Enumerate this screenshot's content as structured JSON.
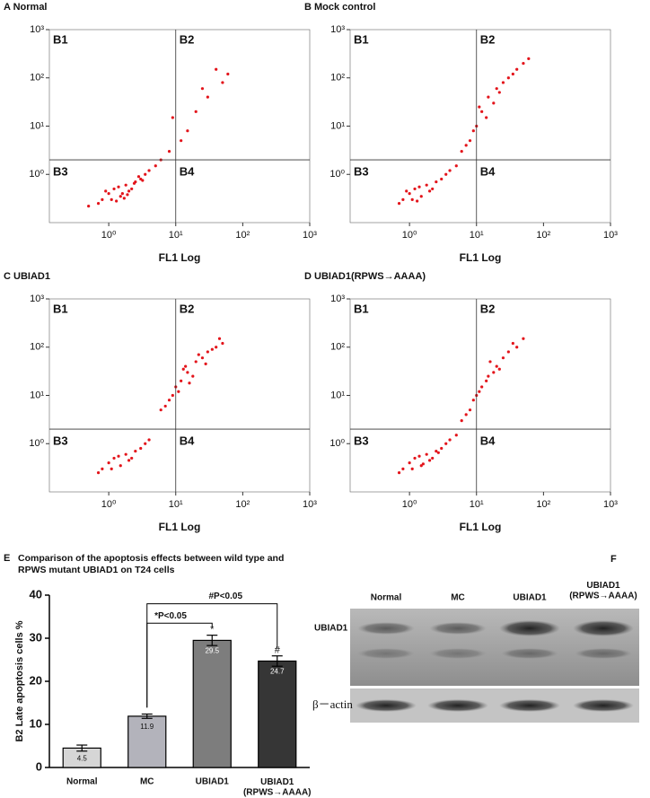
{
  "chart_data": [
    {
      "type": "scatter",
      "title": "A Normal",
      "x_label": "FL1 Log",
      "quadrant_labels": [
        "B1",
        "B2",
        "B3",
        "B4"
      ],
      "color": "#e3141b",
      "log_x": true,
      "log_y": true,
      "x": [
        0.8,
        1.0,
        1.2,
        1.5,
        1.8,
        2.0,
        2.5,
        3.0,
        0.7,
        1.1,
        1.4,
        2.2,
        3.5,
        4.0,
        5.0,
        1.3,
        0.9,
        1.6,
        2.8,
        6.0,
        8.0,
        12,
        15,
        20,
        30,
        25,
        50,
        60,
        9,
        0.5,
        1.7,
        2.4,
        1.9,
        3.2,
        40
      ],
      "values": [
        0.3,
        0.4,
        0.5,
        0.35,
        0.6,
        0.45,
        0.7,
        0.8,
        0.25,
        0.3,
        0.55,
        0.5,
        1.0,
        1.2,
        1.5,
        0.28,
        0.45,
        0.4,
        0.9,
        2.0,
        3.0,
        5.0,
        8.0,
        20,
        40,
        60,
        80,
        120,
        15,
        0.22,
        0.32,
        0.65,
        0.38,
        0.75,
        150
      ],
      "xlim": [
        0.13,
        1000
      ],
      "ylim": [
        0.1,
        1000
      ],
      "xticks": [
        {
          "value": 1,
          "label": "10⁰"
        },
        {
          "value": 10,
          "label": "10¹"
        },
        {
          "value": 100,
          "label": "10²"
        },
        {
          "value": 1000,
          "label": "10³"
        }
      ],
      "yticks": [
        {
          "value": 1,
          "label": "10⁰"
        },
        {
          "value": 10,
          "label": "10¹"
        },
        {
          "value": 100,
          "label": "10²"
        },
        {
          "value": 1000,
          "label": "10³"
        }
      ],
      "gate_x": 10,
      "gate_y": 2
    },
    {
      "type": "scatter",
      "title": "B Mock control",
      "x_label": "FL1 Log",
      "quadrant_labels": [
        "B1",
        "B2",
        "B3",
        "B4"
      ],
      "color": "#e3141b",
      "log_x": true,
      "log_y": true,
      "x": [
        0.8,
        1.0,
        1.2,
        1.5,
        1.8,
        2.0,
        2.5,
        3.0,
        0.7,
        1.1,
        1.4,
        2.2,
        3.5,
        4.0,
        5.0,
        1.3,
        0.9,
        6.0,
        8.0,
        10,
        12,
        15,
        20,
        25,
        30,
        18,
        40,
        50,
        9,
        14,
        22,
        7,
        11,
        35,
        60
      ],
      "values": [
        0.3,
        0.4,
        0.5,
        0.35,
        0.6,
        0.45,
        0.7,
        0.8,
        0.25,
        0.3,
        0.55,
        0.5,
        1.0,
        1.2,
        1.5,
        0.28,
        0.45,
        3.0,
        5.0,
        10,
        20,
        40,
        60,
        80,
        100,
        30,
        150,
        200,
        8.0,
        15,
        50,
        4.0,
        25,
        120,
        250
      ],
      "xlim": [
        0.13,
        1000
      ],
      "ylim": [
        0.1,
        1000
      ],
      "xticks": [
        {
          "value": 1,
          "label": "10⁰"
        },
        {
          "value": 10,
          "label": "10¹"
        },
        {
          "value": 100,
          "label": "10²"
        },
        {
          "value": 1000,
          "label": "10³"
        }
      ],
      "yticks": [
        {
          "value": 1,
          "label": "10⁰"
        },
        {
          "value": 10,
          "label": "10¹"
        },
        {
          "value": 100,
          "label": "10²"
        },
        {
          "value": 1000,
          "label": "10³"
        }
      ],
      "gate_x": 10,
      "gate_y": 2
    },
    {
      "type": "scatter",
      "title": "C UBIAD1",
      "x_label": "FL1 Log",
      "quadrant_labels": [
        "B1",
        "B2",
        "B3",
        "B4"
      ],
      "color": "#e3141b",
      "log_x": true,
      "log_y": true,
      "x": [
        0.8,
        1.0,
        1.2,
        1.5,
        1.8,
        2.0,
        2.5,
        3.0,
        0.7,
        1.1,
        1.4,
        2.2,
        3.5,
        4.0,
        6.0,
        8.0,
        10,
        12,
        15,
        20,
        25,
        30,
        40,
        50,
        9,
        14,
        18,
        22,
        11,
        16,
        35,
        28,
        7,
        13,
        45
      ],
      "values": [
        0.3,
        0.4,
        0.5,
        0.35,
        0.6,
        0.45,
        0.7,
        0.8,
        0.25,
        0.3,
        0.55,
        0.5,
        1.0,
        1.2,
        5.0,
        8.0,
        15,
        20,
        30,
        50,
        60,
        80,
        100,
        120,
        10,
        40,
        25,
        70,
        12,
        18,
        90,
        45,
        6.0,
        35,
        150
      ],
      "xlim": [
        0.13,
        1000
      ],
      "ylim": [
        0.1,
        1000
      ],
      "xticks": [
        {
          "value": 1,
          "label": "10⁰"
        },
        {
          "value": 10,
          "label": "10¹"
        },
        {
          "value": 100,
          "label": "10²"
        },
        {
          "value": 1000,
          "label": "10³"
        }
      ],
      "yticks": [
        {
          "value": 1,
          "label": "10⁰"
        },
        {
          "value": 10,
          "label": "10¹"
        },
        {
          "value": 100,
          "label": "10²"
        },
        {
          "value": 1000,
          "label": "10³"
        }
      ],
      "gate_x": 10,
      "gate_y": 2
    },
    {
      "type": "scatter",
      "title": "D UBIAD1(RPWS→AAAA)",
      "x_label": "FL1 Log",
      "quadrant_labels": [
        "B1",
        "B2",
        "B3",
        "B4"
      ],
      "color": "#e3141b",
      "log_x": true,
      "log_y": true,
      "x": [
        0.8,
        1.0,
        1.2,
        1.5,
        1.8,
        2.0,
        2.5,
        3.0,
        0.7,
        1.1,
        1.4,
        2.2,
        3.5,
        4.0,
        5.0,
        6.0,
        8.0,
        10,
        12,
        15,
        20,
        25,
        30,
        40,
        9,
        14,
        18,
        11,
        7,
        35,
        1.6,
        2.7,
        16,
        22,
        50
      ],
      "values": [
        0.3,
        0.4,
        0.5,
        0.35,
        0.6,
        0.45,
        0.7,
        0.8,
        0.25,
        0.3,
        0.55,
        0.5,
        1.0,
        1.2,
        1.5,
        3.0,
        5.0,
        10,
        15,
        25,
        40,
        60,
        80,
        100,
        8.0,
        20,
        30,
        12,
        4.0,
        120,
        0.38,
        0.65,
        50,
        35,
        150
      ],
      "xlim": [
        0.13,
        1000
      ],
      "ylim": [
        0.1,
        1000
      ],
      "xticks": [
        {
          "value": 1,
          "label": "10⁰"
        },
        {
          "value": 10,
          "label": "10¹"
        },
        {
          "value": 100,
          "label": "10²"
        },
        {
          "value": 1000,
          "label": "10³"
        }
      ],
      "yticks": [
        {
          "value": 1,
          "label": "10⁰"
        },
        {
          "value": 10,
          "label": "10¹"
        },
        {
          "value": 100,
          "label": "10²"
        },
        {
          "value": 1000,
          "label": "10³"
        }
      ],
      "gate_x": 10,
      "gate_y": 2
    },
    {
      "type": "bar",
      "label": "E",
      "title": [
        "Comparison of the apoptosis effects between wild type and",
        "RPWS mutant UBIAD1 on T24 cells"
      ],
      "y_label": "B2 Late apoptosis cells %",
      "categories": [
        "Normal",
        "MC",
        "UBIAD1",
        "UBIAD1\n(RPWS→AAAA)"
      ],
      "values": [
        4.5,
        11.9,
        29.5,
        24.7
      ],
      "errors": [
        0.7,
        0.5,
        1.2,
        1.2
      ],
      "colors": [
        "#d6d6d6",
        "#b3b3bb",
        "#7d7d7d",
        "#363636"
      ],
      "ylim": [
        0,
        40
      ],
      "yticks": [
        0,
        10,
        20,
        30,
        40
      ],
      "annotations": [
        "*P<0.05",
        "#P<0.05"
      ],
      "bar_marks": [
        "*",
        "#"
      ]
    }
  ],
  "blot": {
    "label": "F",
    "lanes": [
      "Normal",
      "MC",
      "UBIAD1",
      "UBIAD1\n(RPWS→AAAA)"
    ],
    "rows": [
      "UBIAD1",
      "β－actin"
    ]
  }
}
